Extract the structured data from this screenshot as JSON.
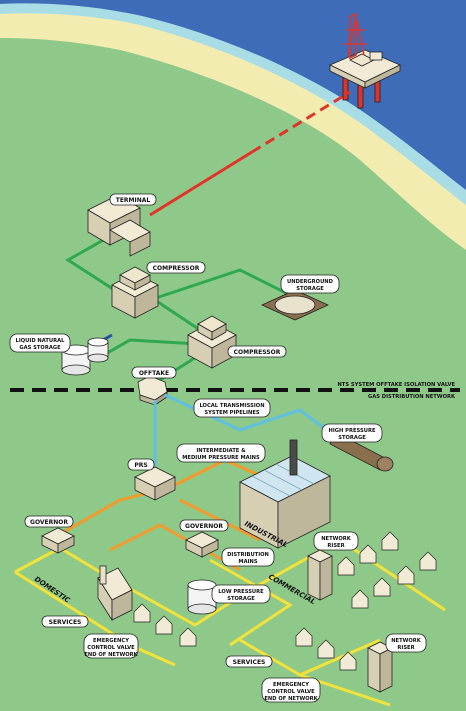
{
  "labels": {
    "terminal": "TERMINAL",
    "compressor_1": "COMPRESSOR",
    "compressor_2": "COMPRESSOR",
    "underground_storage_1": "UNDERGROUND",
    "underground_storage_2": "STORAGE",
    "lng_1": "LIQUID NATURAL",
    "lng_2": "GAS STORAGE",
    "offtake": "OFFTAKE",
    "nts_valve": "NTS SYSTEM OFFTAKE ISOLATION VALVE",
    "gas_network": "GAS DISTRIBUTION NETWORK",
    "local_pipelines_1": "LOCAL TRANSMISSION",
    "local_pipelines_2": "SYSTEM PIPELINES",
    "high_pressure_1": "HIGH PRESSURE",
    "high_pressure_2": "STORAGE",
    "prs": "PRS",
    "mains_1": "INTERMEDIATE &",
    "mains_2": "MEDIUM PRESSURE MAINS",
    "governor_1": "GOVERNOR",
    "governor_2": "GOVERNOR",
    "industrial": "INDUSTRIAL",
    "network_riser_1a": "NETWORK",
    "network_riser_1b": "RISER",
    "distribution_1": "DISTRIBUTION",
    "distribution_2": "MAINS",
    "commercial": "COMMERCIAL",
    "domestic": "DOMESTIC",
    "low_pressure_1": "LOW PRESSURE",
    "low_pressure_2": "STORAGE",
    "services_1": "SERVICES",
    "services_2": "SERVICES",
    "ecv_1a": "EMERGENCY",
    "ecv_1b": "CONTROL VALVE",
    "ecv_1c": "END OF NETWORK",
    "network_riser_2a": "NETWORK",
    "network_riser_2b": "RISER",
    "ecv_2a": "EMERGENCY",
    "ecv_2b": "CONTROL VALVE",
    "ecv_2c": "END OF NETWORK"
  },
  "colors": {
    "sea": "#3f6cb8",
    "surf": "#a8dde6",
    "sand": "#f3ecb0",
    "grass": "#8fc98a",
    "offshore_pipe": "#e0342a",
    "transmission": "#2fa84f",
    "lng_pipe": "#2a4fa8",
    "local_transmission": "#5fbfe0",
    "medium_pressure": "#f29a2a",
    "low_pressure": "#f2e23a",
    "building": "#f1ead4",
    "outline": "#222222"
  }
}
